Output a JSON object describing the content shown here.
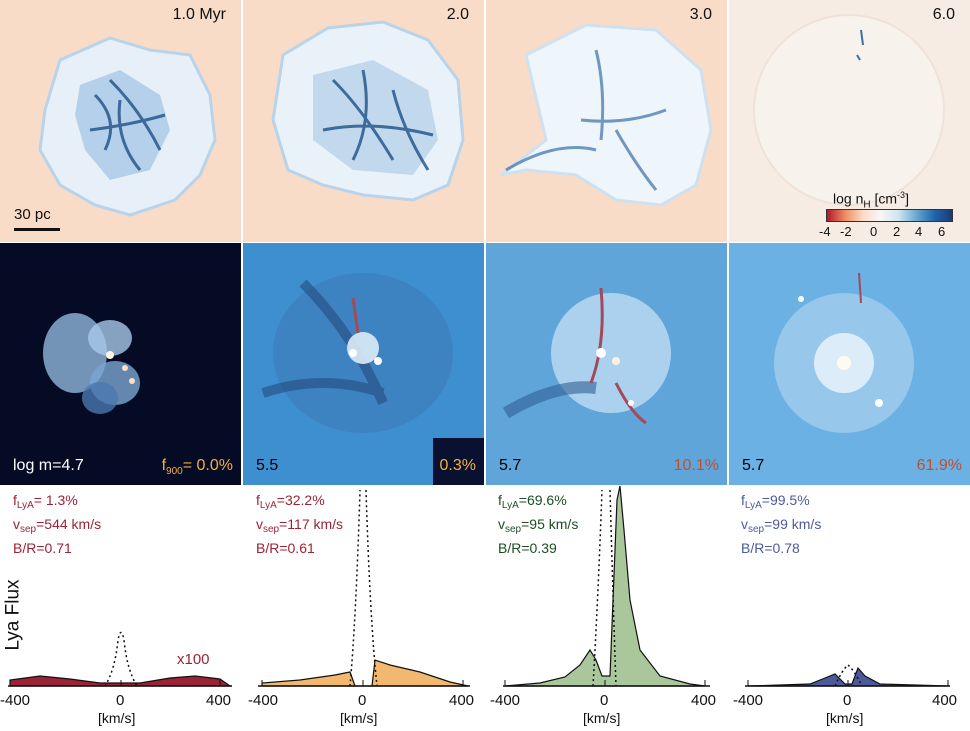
{
  "colors": {
    "gas_bg": "#f9dcc8",
    "gas_filament": "#1c4f86",
    "red_spectrum": "#9b2335",
    "orange_spectrum": "#f2b870",
    "green_spectrum": "#a9c79b",
    "blue_spectrum": "#4d5a9a",
    "escape_orange": "#f5b041",
    "escape_red": "#c0502e"
  },
  "top_row": {
    "times": [
      "1.0 Myr",
      "2.0",
      "3.0",
      "6.0"
    ],
    "scale_bar": "30 pc",
    "colorbar": {
      "label": "log n",
      "label_sub": "H",
      "label_unit": " [cm",
      "label_sup": "-3",
      "label_close": "]",
      "ticks": [
        "-4",
        "-2",
        "0",
        "2",
        "4",
        "6"
      ]
    }
  },
  "middle_row": {
    "masses": [
      "log m=4.7",
      "5.5",
      "5.7",
      "5.7"
    ],
    "f900_prefix": "f",
    "f900_sub": "900",
    "f900_values": [
      "= 0.0%",
      "0.3%",
      "10.1%",
      "61.9%"
    ]
  },
  "bottom_row": {
    "ylabel": "Lya Flux",
    "xlabel": "[km/s]",
    "xticks": [
      "-400",
      "0",
      "400"
    ],
    "multiplier": "x100",
    "stats": [
      {
        "f": "f",
        "f_sub": "LyA",
        "f_val": "= 1.3%",
        "v": "v",
        "v_sub": "sep",
        "v_val": "=544 km/s",
        "br": "B/R=0.71"
      },
      {
        "f": "f",
        "f_sub": "LyA",
        "f_val": "=32.2%",
        "v": "v",
        "v_sub": "sep",
        "v_val": "=117 km/s",
        "br": "B/R=0.61"
      },
      {
        "f": "f",
        "f_sub": "LyA",
        "f_val": "=69.6%",
        "v": "v",
        "v_sub": "sep",
        "v_val": "=95 km/s",
        "br": "B/R=0.39"
      },
      {
        "f": "f",
        "f_sub": "LyA",
        "f_val": "=99.5%",
        "v": "v",
        "v_sub": "sep",
        "v_val": "=99 km/s",
        "br": "B/R=0.78"
      }
    ]
  }
}
